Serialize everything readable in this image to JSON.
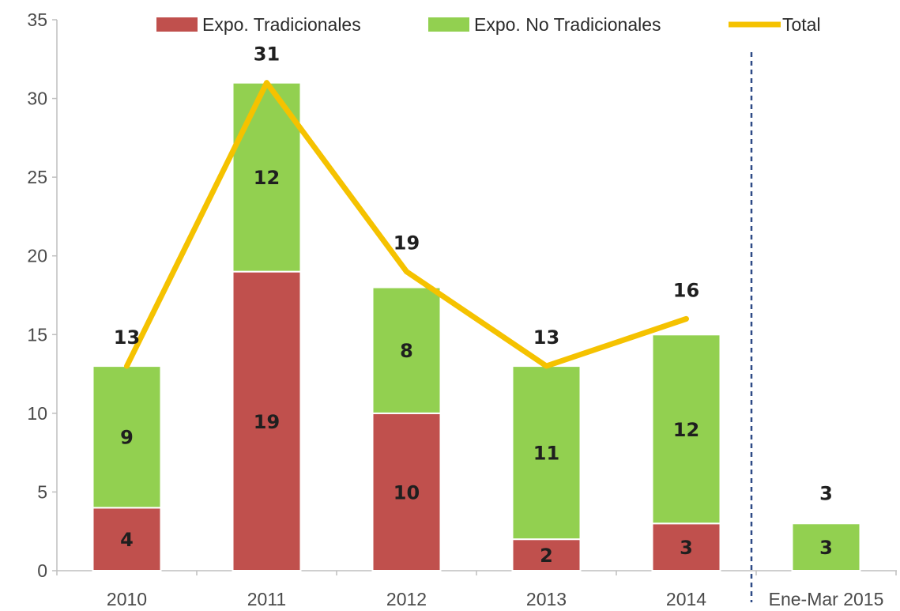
{
  "chart_data": {
    "type": "bar",
    "stacked": true,
    "categories": [
      "2010",
      "2011",
      "2012",
      "2013",
      "2014",
      "Ene-Mar 2015"
    ],
    "series": [
      {
        "name": "Expo. Tradicionales",
        "values": [
          4,
          19,
          10,
          2,
          3,
          0
        ],
        "labels": [
          "4",
          "19",
          "10",
          "2",
          "3",
          ""
        ],
        "color": "#c0504d"
      },
      {
        "name": "Expo. No Tradicionales",
        "values": [
          9,
          12,
          8,
          11,
          12,
          3
        ],
        "labels": [
          "9",
          "12",
          "8",
          "11",
          "12",
          "3"
        ],
        "color": "#92d050"
      }
    ],
    "line": {
      "name": "Total",
      "values": [
        13,
        31,
        19,
        13,
        16
      ],
      "labels": [
        "13",
        "31",
        "19",
        "13",
        "16"
      ],
      "color": "#f5c200"
    },
    "extra_total_label": {
      "category_index": 5,
      "label": "3"
    },
    "ylim": [
      0,
      35
    ],
    "yticks": [
      0,
      5,
      10,
      15,
      20,
      25,
      30,
      35
    ],
    "grid": false,
    "legend_position": "top",
    "separator": "dashed vertical line between 2014 and Ene-Mar 2015",
    "separator_color": "#2e4a86"
  }
}
